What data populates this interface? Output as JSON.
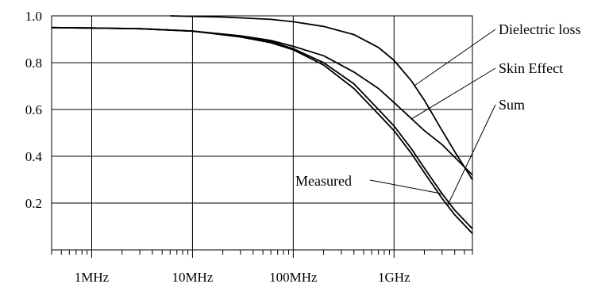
{
  "chart_data": {
    "type": "line",
    "title": "",
    "xlabel": "",
    "ylabel": "",
    "xscale": "log",
    "xlim": [
      400000,
      6000000000
    ],
    "ylim": [
      0,
      1.0
    ],
    "grid": true,
    "y_ticks": [
      {
        "value": 1.0,
        "label": "1.0"
      },
      {
        "value": 0.8,
        "label": "0.8"
      },
      {
        "value": 0.6,
        "label": "0.6"
      },
      {
        "value": 0.4,
        "label": "0.4"
      },
      {
        "value": 0.2,
        "label": "0.2"
      }
    ],
    "x_ticks": [
      {
        "value": 1000000,
        "label": "1MHz"
      },
      {
        "value": 10000000,
        "label": "10MHz"
      },
      {
        "value": 100000000,
        "label": "100MHz"
      },
      {
        "value": 1000000000,
        "label": "1GHz"
      }
    ],
    "series": [
      {
        "name": "Dielectric loss",
        "x": [
          6000000,
          20000000,
          60000000,
          100000000,
          200000000,
          400000000,
          700000000,
          1000000000,
          1500000000,
          2000000000,
          3000000000,
          4000000000,
          6000000000
        ],
        "y": [
          1.0,
          0.995,
          0.985,
          0.975,
          0.955,
          0.92,
          0.865,
          0.81,
          0.72,
          0.64,
          0.51,
          0.42,
          0.3
        ]
      },
      {
        "name": "Skin Effect",
        "x": [
          400000,
          1000000,
          3000000,
          10000000,
          30000000,
          60000000,
          100000000,
          200000000,
          400000000,
          700000000,
          1000000000,
          2000000000,
          3000000000,
          6000000000
        ],
        "y": [
          0.95,
          0.948,
          0.945,
          0.935,
          0.915,
          0.895,
          0.87,
          0.83,
          0.76,
          0.69,
          0.63,
          0.51,
          0.45,
          0.32
        ]
      },
      {
        "name": "Sum",
        "x": [
          400000,
          1000000,
          3000000,
          10000000,
          30000000,
          60000000,
          100000000,
          200000000,
          400000000,
          700000000,
          1000000000,
          1500000000,
          2000000000,
          3000000000,
          4000000000,
          6000000000
        ],
        "y": [
          0.95,
          0.948,
          0.945,
          0.935,
          0.91,
          0.885,
          0.855,
          0.79,
          0.69,
          0.58,
          0.51,
          0.41,
          0.33,
          0.22,
          0.15,
          0.07
        ]
      },
      {
        "name": "Measured",
        "x": [
          400000,
          1000000,
          3000000,
          10000000,
          30000000,
          60000000,
          100000000,
          200000000,
          400000000,
          700000000,
          1000000000,
          1500000000,
          2000000000,
          3000000000,
          4000000000,
          6000000000
        ],
        "y": [
          0.95,
          0.948,
          0.945,
          0.935,
          0.912,
          0.89,
          0.86,
          0.8,
          0.71,
          0.6,
          0.53,
          0.43,
          0.35,
          0.24,
          0.17,
          0.09
        ]
      }
    ],
    "annotations": [
      {
        "text": "Dielectric loss",
        "series": "Dielectric loss"
      },
      {
        "text": "Skin Effect",
        "series": "Skin Effect"
      },
      {
        "text": "Sum",
        "series": "Sum"
      },
      {
        "text": "Measured",
        "series": "Measured"
      }
    ]
  }
}
